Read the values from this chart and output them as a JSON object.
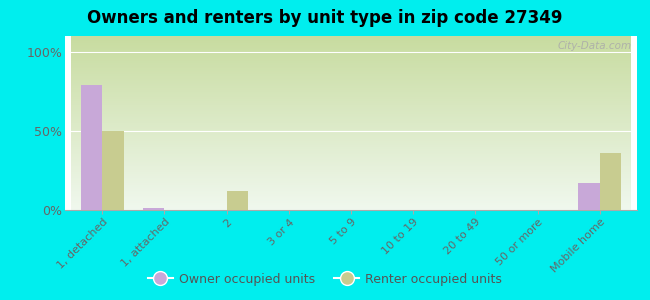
{
  "title": "Owners and renters by unit type in zip code 27349",
  "categories": [
    "1, detached",
    "1, attached",
    "2",
    "3 or 4",
    "5 to 9",
    "10 to 19",
    "20 to 49",
    "50 or more",
    "Mobile home"
  ],
  "owner_values": [
    79,
    1,
    0,
    0,
    0,
    0,
    0,
    0,
    17
  ],
  "renter_values": [
    50,
    0,
    12,
    0,
    0,
    0,
    0,
    0,
    36
  ],
  "owner_color": "#c8a8d8",
  "renter_color": "#c8cc90",
  "background_color": "#00eeee",
  "yticks": [
    0,
    50,
    100
  ],
  "ylim": [
    0,
    110
  ],
  "bar_width": 0.35,
  "legend_labels": [
    "Owner occupied units",
    "Renter occupied units"
  ],
  "watermark": "City-Data.com",
  "grad_bottom": "#c8dca0",
  "grad_top": "#f0f8ee"
}
